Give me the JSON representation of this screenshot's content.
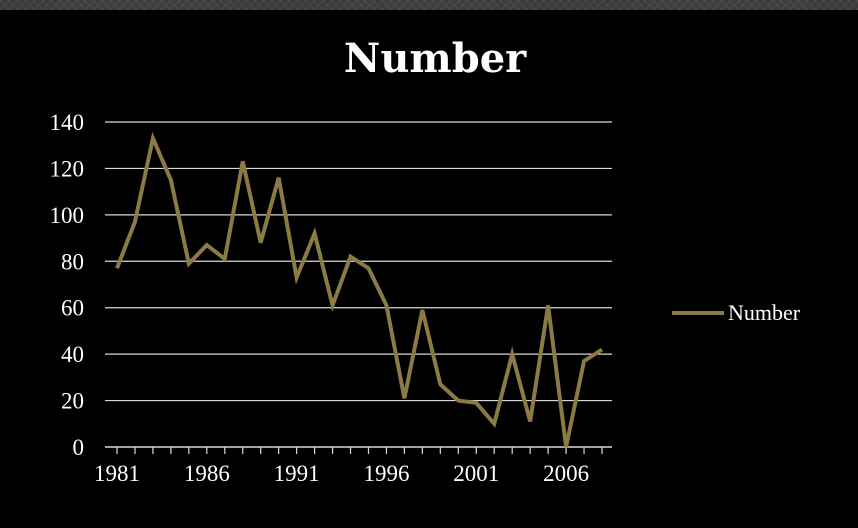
{
  "chart_data": {
    "type": "line",
    "title": "Number",
    "xlabel": "",
    "ylabel": "",
    "x": [
      1981,
      1982,
      1983,
      1984,
      1985,
      1986,
      1987,
      1988,
      1989,
      1990,
      1991,
      1992,
      1993,
      1994,
      1995,
      1996,
      1997,
      1998,
      1999,
      2000,
      2001,
      2002,
      2003,
      2004,
      2005,
      2006,
      2007,
      2008
    ],
    "series": [
      {
        "name": "Number",
        "color": "#8c7a45",
        "values": [
          77,
          97,
          133,
          115,
          79,
          87,
          81,
          123,
          88,
          116,
          73,
          92,
          61,
          82,
          77,
          61,
          21,
          59,
          27,
          20,
          19,
          10,
          40,
          11,
          61,
          0,
          37,
          42
        ]
      }
    ],
    "xticks": [
      "1981",
      "1986",
      "1991",
      "1996",
      "2001",
      "2006"
    ],
    "yticks": [
      "0",
      "20",
      "40",
      "60",
      "80",
      "100",
      "120",
      "140"
    ],
    "ylim": [
      0,
      140
    ],
    "xlim": [
      1981,
      2008
    ],
    "grid": true,
    "legend_position": "right"
  }
}
